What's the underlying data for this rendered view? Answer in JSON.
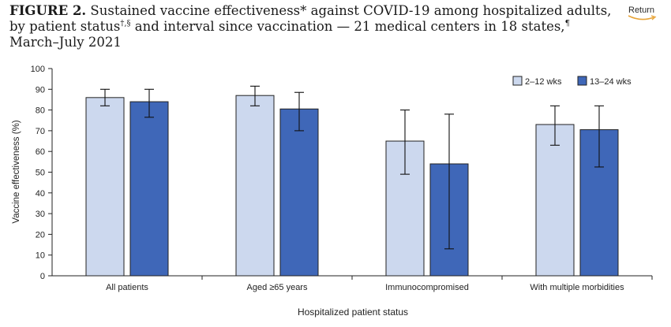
{
  "header": {
    "title_lead": "FIGURE 2.",
    "title_text_1": " Sustained vaccine effectiveness* against COVID-19 among hospitalized adults, by patient status",
    "sup_1": "†,§",
    "title_text_2": " and interval since vaccination — 21 medical centers in 18 states,",
    "sup_2": "¶",
    "title_text_3": " March–July 2021",
    "return_label": "Return",
    "return_icon": "curved-arrow-icon"
  },
  "chart_data": {
    "type": "bar",
    "categories": [
      "All patients",
      "Aged ≥65 years",
      "Immunocompromised",
      "With multiple morbidities"
    ],
    "series": [
      {
        "name": "2–12 wks",
        "color": "#ccd8ee",
        "values": [
          86,
          87,
          65,
          73
        ],
        "ci_low": [
          82,
          82,
          49,
          63
        ],
        "ci_high": [
          90,
          91.5,
          80,
          82
        ]
      },
      {
        "name": "13–24 wks",
        "color": "#3f67b8",
        "values": [
          84,
          80.5,
          54,
          70.5
        ],
        "ci_low": [
          76.5,
          70,
          13,
          52.5
        ],
        "ci_high": [
          90,
          88.5,
          78,
          82
        ]
      }
    ],
    "xlabel": "Hospitalized patient status",
    "ylabel": "Vaccine effectiveness (%)",
    "ylim": [
      0,
      100
    ],
    "yticks": [
      0,
      10,
      20,
      30,
      40,
      50,
      60,
      70,
      80,
      90,
      100
    ],
    "grid": false,
    "legend": "top-right",
    "error_bars": true
  }
}
